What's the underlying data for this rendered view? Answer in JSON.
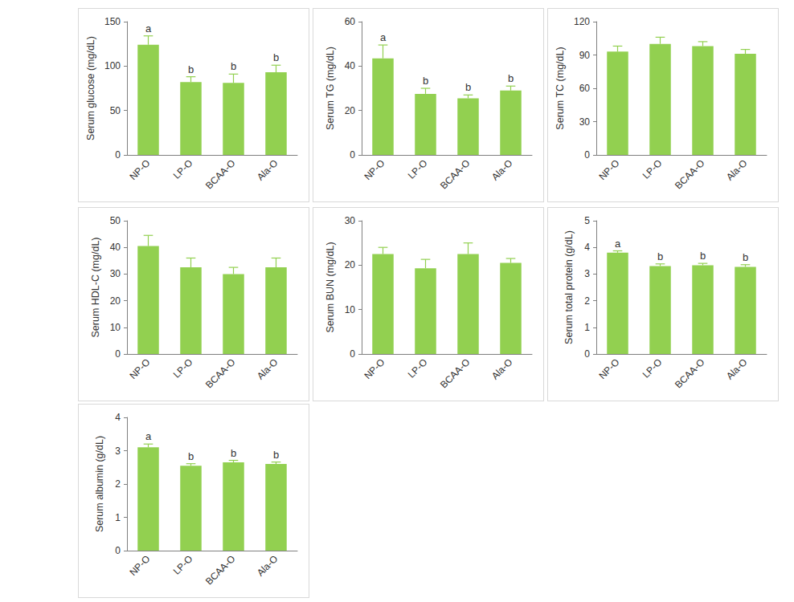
{
  "chart_data": [
    {
      "type": "bar",
      "y_label": "Serum glucose (mg/dL)",
      "categories": [
        "NP-O",
        "LP-O",
        "BCAA-O",
        "Ala-O"
      ],
      "values": [
        124,
        82,
        81,
        93
      ],
      "errors": [
        10,
        6,
        10,
        8
      ],
      "annotations": [
        "a",
        "b",
        "b",
        "b"
      ],
      "color": "#92D050",
      "ylim": [
        0,
        150
      ],
      "yticks": [
        0,
        50,
        100,
        150
      ],
      "grid": false
    },
    {
      "type": "bar",
      "y_label": "Serum TG (mg/dL)",
      "categories": [
        "NP-O",
        "LP-O",
        "BCAA-O",
        "Ala-O"
      ],
      "values": [
        43.5,
        27.5,
        25.5,
        29
      ],
      "errors": [
        6,
        2.5,
        1.5,
        2
      ],
      "annotations": [
        "a",
        "b",
        "b",
        "b"
      ],
      "color": "#92D050",
      "ylim": [
        0,
        60
      ],
      "yticks": [
        0,
        20,
        40,
        60
      ],
      "grid": false
    },
    {
      "type": "bar",
      "y_label": "Serum TC (mg/dL)",
      "categories": [
        "NP-O",
        "LP-O",
        "BCAA-O",
        "Ala-O"
      ],
      "values": [
        93,
        100,
        98,
        91
      ],
      "errors": [
        5,
        6,
        4,
        4
      ],
      "color": "#92D050",
      "ylim": [
        0,
        120
      ],
      "yticks": [
        0,
        30,
        60,
        90,
        120
      ],
      "grid": false
    },
    {
      "type": "bar",
      "y_label": "Serum HDL-C (mg/dL)",
      "categories": [
        "NP-O",
        "LP-O",
        "BCAA-O",
        "Ala-O"
      ],
      "values": [
        40.5,
        32.5,
        30,
        32.5
      ],
      "errors": [
        4,
        3.5,
        2.5,
        3.5
      ],
      "color": "#92D050",
      "ylim": [
        0,
        50
      ],
      "yticks": [
        0,
        10,
        20,
        30,
        40,
        50
      ],
      "grid": false
    },
    {
      "type": "bar",
      "y_label": "Serum BUN (mg/dL)",
      "categories": [
        "NP-O",
        "LP-O",
        "BCAA-O",
        "Ala-O"
      ],
      "values": [
        22.5,
        19.3,
        22.5,
        20.5
      ],
      "errors": [
        1.5,
        2,
        2.5,
        1
      ],
      "color": "#92D050",
      "ylim": [
        0,
        30
      ],
      "yticks": [
        0,
        10,
        20,
        30
      ],
      "grid": false
    },
    {
      "type": "bar",
      "y_label": "Serum total protein (g/dL)",
      "categories": [
        "NP-O",
        "LP-O",
        "BCAA-O",
        "Ala-O"
      ],
      "values": [
        3.8,
        3.3,
        3.33,
        3.27
      ],
      "errors": [
        0.07,
        0.08,
        0.07,
        0.08
      ],
      "annotations": [
        "a",
        "b",
        "b",
        "b"
      ],
      "color": "#92D050",
      "ylim": [
        0,
        5
      ],
      "yticks": [
        0,
        1,
        2,
        3,
        4,
        5
      ],
      "grid": false
    },
    {
      "type": "bar",
      "y_label": "Serum albumin (g/dL)",
      "categories": [
        "NP-O",
        "LP-O",
        "BCAA-O",
        "Ala-O"
      ],
      "values": [
        3.1,
        2.55,
        2.65,
        2.6
      ],
      "errors": [
        0.1,
        0.06,
        0.06,
        0.06
      ],
      "annotations": [
        "a",
        "b",
        "b",
        "b"
      ],
      "color": "#92D050",
      "ylim": [
        0,
        4
      ],
      "yticks": [
        0,
        1,
        2,
        3,
        4
      ],
      "grid": false
    }
  ]
}
